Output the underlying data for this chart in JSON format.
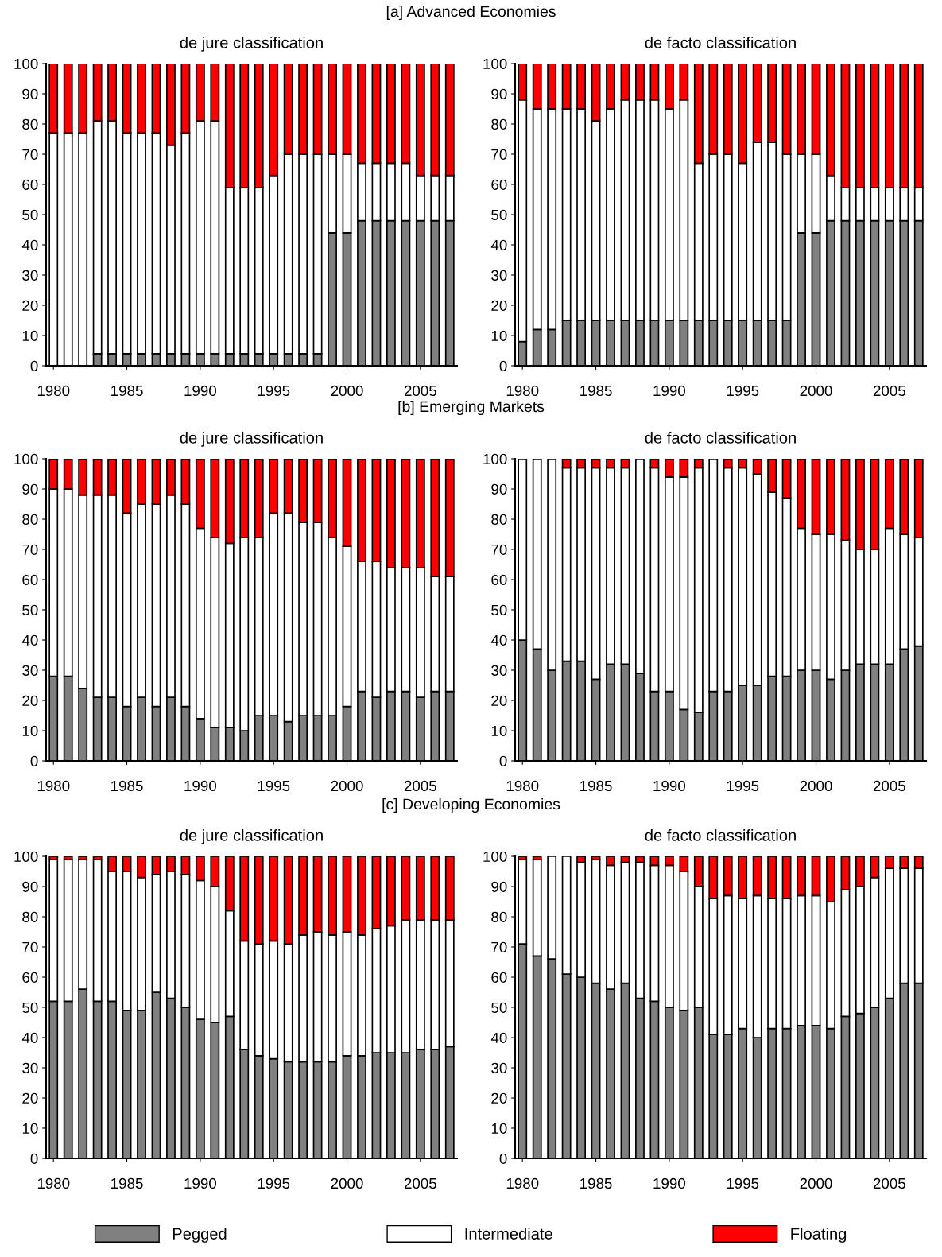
{
  "chart_data": [
    {
      "type": "bar",
      "stacked": true,
      "subtitle": "[a] Advanced Economies",
      "title": "de jure classification",
      "x": [
        1980,
        1981,
        1982,
        1983,
        1984,
        1985,
        1986,
        1987,
        1988,
        1989,
        1990,
        1991,
        1992,
        1993,
        1994,
        1995,
        1996,
        1997,
        1998,
        1999,
        2000,
        2001,
        2002,
        2003,
        2004,
        2005,
        2006,
        2007
      ],
      "xlim": [
        1979.5,
        2007.5
      ],
      "xticks": [
        1980,
        1985,
        1990,
        1995,
        2000,
        2005
      ],
      "ylim": [
        0,
        100
      ],
      "yticks": [
        0,
        10,
        20,
        30,
        40,
        50,
        60,
        70,
        80,
        90,
        100
      ],
      "grid": false,
      "legend": "bottom",
      "series": [
        {
          "name": "Pegged",
          "color": "#808080",
          "values": [
            0,
            0,
            0,
            4,
            4,
            4,
            4,
            4,
            4,
            4,
            4,
            4,
            4,
            4,
            4,
            4,
            4,
            4,
            4,
            44,
            44,
            48,
            48,
            48,
            48,
            48,
            48,
            48
          ]
        },
        {
          "name": "Intermediate",
          "color": "#ffffff",
          "values": [
            77,
            77,
            77,
            77,
            77,
            73,
            73,
            73,
            69,
            73,
            77,
            77,
            55,
            55,
            55,
            59,
            66,
            66,
            66,
            26,
            26,
            19,
            19,
            19,
            19,
            15,
            15,
            15
          ]
        },
        {
          "name": "Floating",
          "color": "#ff0000",
          "values": [
            23,
            23,
            23,
            19,
            19,
            23,
            23,
            23,
            27,
            23,
            19,
            19,
            41,
            41,
            41,
            37,
            30,
            30,
            30,
            30,
            30,
            33,
            33,
            33,
            33,
            37,
            37,
            37
          ]
        }
      ]
    },
    {
      "type": "bar",
      "stacked": true,
      "title": "de facto classification",
      "x": [
        1980,
        1981,
        1982,
        1983,
        1984,
        1985,
        1986,
        1987,
        1988,
        1989,
        1990,
        1991,
        1992,
        1993,
        1994,
        1995,
        1996,
        1997,
        1998,
        1999,
        2000,
        2001,
        2002,
        2003,
        2004,
        2005,
        2006,
        2007
      ],
      "xlim": [
        1979.5,
        2007.5
      ],
      "xticks": [
        1980,
        1985,
        1990,
        1995,
        2000,
        2005
      ],
      "ylim": [
        0,
        100
      ],
      "yticks": [
        0,
        10,
        20,
        30,
        40,
        50,
        60,
        70,
        80,
        90,
        100
      ],
      "grid": false,
      "series": [
        {
          "color": "#808080",
          "values": [
            8,
            12,
            12,
            15,
            15,
            15,
            15,
            15,
            15,
            15,
            15,
            15,
            15,
            15,
            15,
            15,
            15,
            15,
            15,
            44,
            44,
            48,
            48,
            48,
            48,
            48,
            48,
            48
          ]
        },
        {
          "color": "#ffffff",
          "values": [
            80,
            73,
            73,
            70,
            70,
            66,
            70,
            73,
            73,
            73,
            70,
            73,
            52,
            55,
            55,
            52,
            59,
            59,
            55,
            26,
            26,
            15,
            11,
            11,
            11,
            11,
            11,
            11
          ]
        },
        {
          "color": "#ff0000",
          "values": [
            12,
            15,
            15,
            15,
            15,
            19,
            15,
            12,
            12,
            12,
            15,
            12,
            33,
            30,
            30,
            33,
            26,
            26,
            30,
            30,
            30,
            37,
            41,
            41,
            41,
            41,
            41,
            41
          ]
        }
      ]
    },
    {
      "type": "bar",
      "stacked": true,
      "subtitle": "[b] Emerging Markets",
      "title": "de jure classification",
      "x": [
        1980,
        1981,
        1982,
        1983,
        1984,
        1985,
        1986,
        1987,
        1988,
        1989,
        1990,
        1991,
        1992,
        1993,
        1994,
        1995,
        1996,
        1997,
        1998,
        1999,
        2000,
        2001,
        2002,
        2003,
        2004,
        2005,
        2006,
        2007
      ],
      "xlim": [
        1979.5,
        2007.5
      ],
      "xticks": [
        1980,
        1985,
        1990,
        1995,
        2000,
        2005
      ],
      "ylim": [
        0,
        100
      ],
      "yticks": [
        0,
        10,
        20,
        30,
        40,
        50,
        60,
        70,
        80,
        90,
        100
      ],
      "grid": false,
      "series": [
        {
          "color": "#808080",
          "values": [
            28,
            28,
            24,
            21,
            21,
            18,
            21,
            18,
            21,
            18,
            14,
            11,
            11,
            10,
            15,
            15,
            13,
            15,
            15,
            15,
            18,
            23,
            21,
            23,
            23,
            21,
            23,
            23
          ]
        },
        {
          "color": "#ffffff",
          "values": [
            62,
            62,
            64,
            67,
            67,
            64,
            64,
            67,
            67,
            67,
            63,
            63,
            61,
            64,
            59,
            67,
            69,
            64,
            64,
            59,
            53,
            43,
            45,
            41,
            41,
            43,
            38,
            38
          ]
        },
        {
          "color": "#ff0000",
          "values": [
            10,
            10,
            12,
            12,
            12,
            18,
            15,
            15,
            12,
            15,
            23,
            26,
            28,
            26,
            26,
            18,
            18,
            21,
            21,
            26,
            29,
            34,
            34,
            36,
            36,
            36,
            39,
            39
          ]
        }
      ]
    },
    {
      "type": "bar",
      "stacked": true,
      "title": "de facto classification",
      "x": [
        1980,
        1981,
        1982,
        1983,
        1984,
        1985,
        1986,
        1987,
        1988,
        1989,
        1990,
        1991,
        1992,
        1993,
        1994,
        1995,
        1996,
        1997,
        1998,
        1999,
        2000,
        2001,
        2002,
        2003,
        2004,
        2005,
        2006,
        2007
      ],
      "xlim": [
        1979.5,
        2007.5
      ],
      "xticks": [
        1980,
        1985,
        1990,
        1995,
        2000,
        2005
      ],
      "ylim": [
        0,
        100
      ],
      "yticks": [
        0,
        10,
        20,
        30,
        40,
        50,
        60,
        70,
        80,
        90,
        100
      ],
      "grid": false,
      "series": [
        {
          "color": "#808080",
          "values": [
            40,
            37,
            30,
            33,
            33,
            27,
            32,
            32,
            29,
            23,
            23,
            17,
            16,
            23,
            23,
            25,
            25,
            28,
            28,
            30,
            30,
            27,
            30,
            32,
            32,
            32,
            37,
            38
          ]
        },
        {
          "color": "#ffffff",
          "values": [
            60,
            63,
            70,
            64,
            64,
            70,
            65,
            65,
            71,
            74,
            71,
            77,
            81,
            77,
            74,
            72,
            70,
            61,
            59,
            47,
            45,
            48,
            43,
            38,
            38,
            45,
            38,
            36
          ]
        },
        {
          "color": "#ff0000",
          "values": [
            0,
            0,
            0,
            3,
            3,
            3,
            3,
            3,
            0,
            3,
            6,
            6,
            3,
            0,
            3,
            3,
            5,
            11,
            13,
            23,
            25,
            25,
            27,
            30,
            30,
            23,
            25,
            26
          ]
        }
      ]
    },
    {
      "type": "bar",
      "stacked": true,
      "subtitle": "[c] Developing Economies",
      "title": "de jure classification",
      "x": [
        1980,
        1981,
        1982,
        1983,
        1984,
        1985,
        1986,
        1987,
        1988,
        1989,
        1990,
        1991,
        1992,
        1993,
        1994,
        1995,
        1996,
        1997,
        1998,
        1999,
        2000,
        2001,
        2002,
        2003,
        2004,
        2005,
        2006,
        2007
      ],
      "xlim": [
        1979.5,
        2007.5
      ],
      "xticks": [
        1980,
        1985,
        1990,
        1995,
        2000,
        2005
      ],
      "ylim": [
        0,
        100
      ],
      "yticks": [
        0,
        10,
        20,
        30,
        40,
        50,
        60,
        70,
        80,
        90,
        100
      ],
      "grid": false,
      "series": [
        {
          "color": "#808080",
          "values": [
            52,
            52,
            56,
            52,
            52,
            49,
            49,
            55,
            53,
            50,
            46,
            45,
            47,
            36,
            34,
            33,
            32,
            32,
            32,
            32,
            34,
            34,
            35,
            35,
            35,
            36,
            36,
            37
          ]
        },
        {
          "color": "#ffffff",
          "values": [
            47,
            47,
            43,
            47,
            43,
            46,
            44,
            39,
            42,
            44,
            46,
            45,
            35,
            36,
            37,
            39,
            39,
            42,
            43,
            42,
            41,
            40,
            41,
            42,
            44,
            43,
            43,
            42
          ]
        },
        {
          "color": "#ff0000",
          "values": [
            1,
            1,
            1,
            1,
            5,
            5,
            7,
            6,
            5,
            6,
            8,
            10,
            18,
            28,
            29,
            28,
            29,
            26,
            25,
            26,
            25,
            26,
            24,
            23,
            21,
            21,
            21,
            21
          ]
        }
      ]
    },
    {
      "type": "bar",
      "stacked": true,
      "title": "de facto classification",
      "x": [
        1980,
        1981,
        1982,
        1983,
        1984,
        1985,
        1986,
        1987,
        1988,
        1989,
        1990,
        1991,
        1992,
        1993,
        1994,
        1995,
        1996,
        1997,
        1998,
        1999,
        2000,
        2001,
        2002,
        2003,
        2004,
        2005,
        2006,
        2007
      ],
      "xlim": [
        1979.5,
        2007.5
      ],
      "xticks": [
        1980,
        1985,
        1990,
        1995,
        2000,
        2005
      ],
      "ylim": [
        0,
        100
      ],
      "yticks": [
        0,
        10,
        20,
        30,
        40,
        50,
        60,
        70,
        80,
        90,
        100
      ],
      "grid": false,
      "series": [
        {
          "color": "#808080",
          "values": [
            71,
            67,
            66,
            61,
            60,
            58,
            56,
            58,
            53,
            52,
            50,
            49,
            50,
            41,
            41,
            43,
            40,
            43,
            43,
            44,
            44,
            43,
            47,
            48,
            50,
            53,
            58,
            58
          ]
        },
        {
          "color": "#ffffff",
          "values": [
            28,
            32,
            34,
            39,
            38,
            41,
            41,
            40,
            45,
            45,
            47,
            46,
            40,
            45,
            46,
            43,
            47,
            43,
            43,
            43,
            43,
            42,
            42,
            42,
            43,
            43,
            38,
            38
          ]
        },
        {
          "color": "#ff0000",
          "values": [
            1,
            1,
            0,
            0,
            2,
            1,
            3,
            2,
            2,
            3,
            3,
            5,
            10,
            14,
            13,
            14,
            13,
            14,
            14,
            13,
            13,
            15,
            11,
            10,
            7,
            4,
            4,
            4
          ]
        }
      ]
    }
  ]
}
